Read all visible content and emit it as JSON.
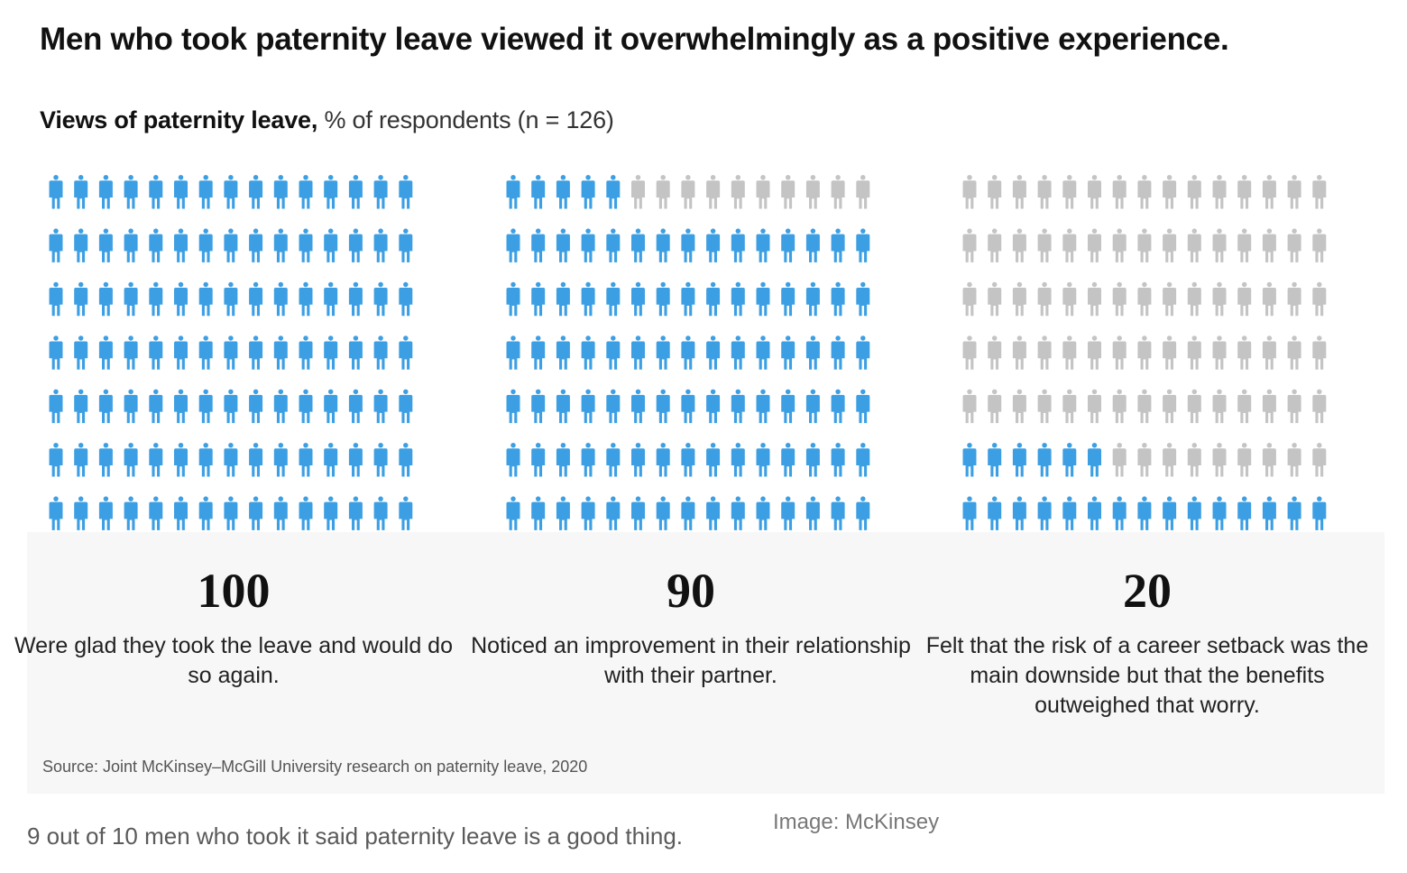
{
  "headline": "Men who took paternity leave viewed it overwhelmingly as a positive experience.",
  "subtitle_bold": "Views of paternity leave,",
  "subtitle_rest": " % of respondents (n = 126)",
  "colors": {
    "highlight": "#3d9fe3",
    "muted": "#c4c4c4"
  },
  "icon": "person-icon",
  "chart_data": {
    "type": "pictogram",
    "unit": "% of respondents",
    "n": 126,
    "grid": {
      "rows": 7,
      "cols": 15
    },
    "items": [
      {
        "value": 100,
        "value_label": "100",
        "label": "Were glad they took the leave and would do so again."
      },
      {
        "value": 90,
        "value_label": "90",
        "label": "Noticed an improvement in their relationship with their partner."
      },
      {
        "value": 20,
        "value_label": "20",
        "label": "Felt that the risk of a career setback was the main downside but that the benefits outweighed that worry."
      }
    ]
  },
  "source": "Source: Joint McKinsey–McGill University research on paternity leave, 2020",
  "caption": "9 out of 10 men who took it said paternity leave is a good thing.",
  "credit": "Image: McKinsey"
}
